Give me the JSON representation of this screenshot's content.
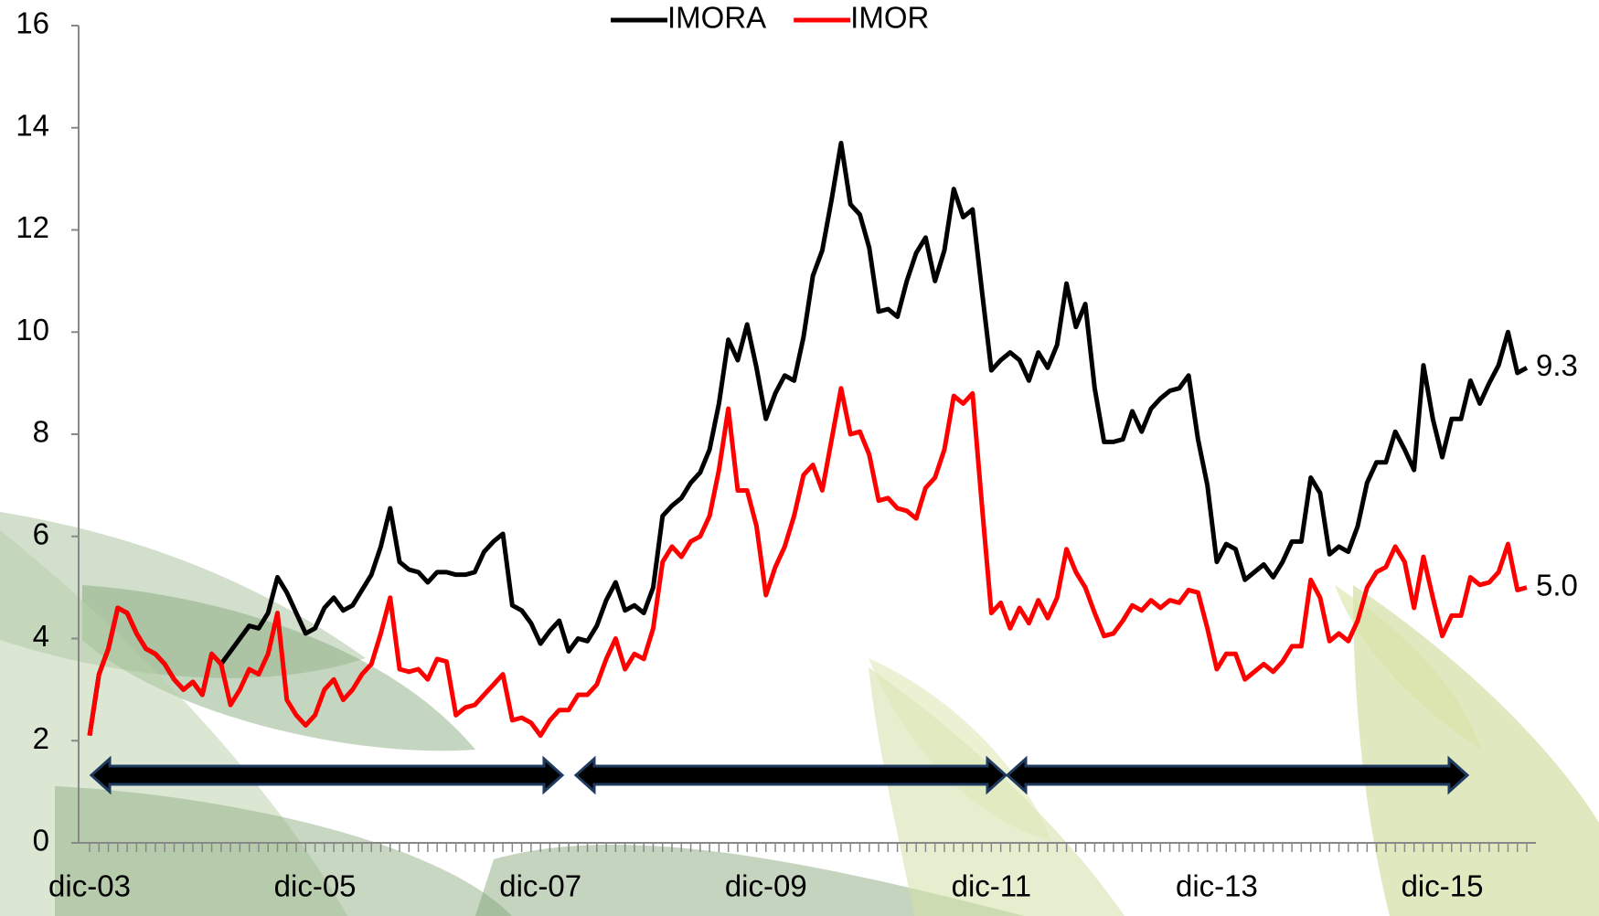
{
  "chart_data": {
    "type": "line",
    "categories": [
      "dic-03",
      null,
      null,
      null,
      null,
      null,
      null,
      null,
      null,
      null,
      null,
      null,
      null,
      null,
      null,
      null,
      null,
      null,
      null,
      null,
      null,
      null,
      null,
      null,
      "dic-05",
      null,
      null,
      null,
      null,
      null,
      null,
      null,
      null,
      null,
      null,
      null,
      null,
      null,
      null,
      null,
      null,
      null,
      null,
      null,
      null,
      null,
      null,
      null,
      "dic-07",
      null,
      null,
      null,
      null,
      null,
      null,
      null,
      null,
      null,
      null,
      null,
      null,
      null,
      null,
      null,
      null,
      null,
      null,
      null,
      null,
      null,
      null,
      null,
      "dic-09",
      null,
      null,
      null,
      null,
      null,
      null,
      null,
      null,
      null,
      null,
      null,
      null,
      null,
      null,
      null,
      null,
      null,
      null,
      null,
      null,
      null,
      null,
      null,
      "dic-11",
      null,
      null,
      null,
      null,
      null,
      null,
      null,
      null,
      null,
      null,
      null,
      null,
      null,
      null,
      null,
      null,
      null,
      null,
      null,
      null,
      null,
      null,
      null,
      "dic-13",
      null,
      null,
      null,
      null,
      null,
      null,
      null,
      null,
      null,
      null,
      null,
      null,
      null,
      null,
      null,
      null,
      null,
      null,
      null,
      null,
      null,
      null,
      null,
      "dic-15",
      null,
      null,
      null,
      null,
      null,
      null,
      null,
      null,
      null
    ],
    "series": [
      {
        "name": "IMORA",
        "color": "#000000",
        "values": [
          2.1,
          3.3,
          3.8,
          4.6,
          4.5,
          4.1,
          3.8,
          3.7,
          3.5,
          3.2,
          3.0,
          3.15,
          2.9,
          3.7,
          3.5,
          3.75,
          4.0,
          4.25,
          4.2,
          4.5,
          5.2,
          4.9,
          4.5,
          4.1,
          4.2,
          4.6,
          4.8,
          4.55,
          4.65,
          4.95,
          5.25,
          5.8,
          6.55,
          5.5,
          5.35,
          5.3,
          5.1,
          5.3,
          5.3,
          5.25,
          5.25,
          5.3,
          5.7,
          5.9,
          6.05,
          4.65,
          4.55,
          4.3,
          3.9,
          4.15,
          4.35,
          3.75,
          4.0,
          3.95,
          4.25,
          4.75,
          5.1,
          4.55,
          4.65,
          4.5,
          5.0,
          6.4,
          6.6,
          6.75,
          7.05,
          7.25,
          7.7,
          8.6,
          9.85,
          9.45,
          10.15,
          9.3,
          8.3,
          8.8,
          9.15,
          9.05,
          9.9,
          11.1,
          11.6,
          12.6,
          13.7,
          12.5,
          12.3,
          11.65,
          10.4,
          10.45,
          10.3,
          11.0,
          11.55,
          11.85,
          11.0,
          11.6,
          12.8,
          12.25,
          12.4,
          10.8,
          9.25,
          9.45,
          9.6,
          9.45,
          9.05,
          9.6,
          9.3,
          9.75,
          10.95,
          10.1,
          10.55,
          8.9,
          7.85,
          7.85,
          7.9,
          8.45,
          8.05,
          8.5,
          8.7,
          8.85,
          8.9,
          9.15,
          7.9,
          7.0,
          5.5,
          5.85,
          5.75,
          5.15,
          5.3,
          5.45,
          5.2,
          5.5,
          5.9,
          5.9,
          7.15,
          6.85,
          5.65,
          5.8,
          5.7,
          6.2,
          7.05,
          7.45,
          7.45,
          8.05,
          7.7,
          7.3,
          9.35,
          8.3,
          7.55,
          8.3,
          8.3,
          9.05,
          8.6,
          9.0,
          9.35,
          10.0,
          9.2,
          9.3
        ],
        "value_labels": [
          null,
          null,
          null,
          null,
          null,
          null,
          null,
          null,
          null,
          null,
          null,
          null,
          null,
          null,
          null,
          null,
          null,
          null,
          null,
          null,
          null,
          null,
          null,
          null,
          null,
          null,
          null,
          null,
          null,
          null,
          null,
          null,
          null,
          null,
          null,
          null,
          null,
          null,
          null,
          null,
          null,
          null,
          null,
          null,
          null,
          null,
          null,
          null,
          null,
          null,
          null,
          null,
          null,
          null,
          null,
          null,
          null,
          null,
          null,
          null,
          null,
          null,
          null,
          null,
          null,
          null,
          null,
          null,
          null,
          null,
          null,
          null,
          null,
          null,
          null,
          null,
          null,
          null,
          null,
          null,
          null,
          null,
          null,
          null,
          null,
          null,
          null,
          null,
          null,
          null,
          null,
          null,
          null,
          null,
          null,
          null,
          null,
          null,
          null,
          null,
          null,
          null,
          null,
          null,
          null,
          null,
          null,
          null,
          null,
          null,
          null,
          null,
          null,
          null,
          null,
          null,
          null,
          null,
          null,
          null,
          null,
          null,
          null,
          null,
          null,
          null,
          null,
          null,
          null,
          null,
          null,
          null,
          null,
          null,
          null,
          null,
          null,
          null,
          null,
          null,
          null,
          null,
          null,
          null,
          null,
          null,
          null,
          null,
          null,
          null,
          null,
          null,
          null,
          "9.3"
        ]
      },
      {
        "name": "IMOR",
        "color": "#ff0000",
        "values": [
          2.1,
          3.3,
          3.8,
          4.6,
          4.5,
          4.1,
          3.8,
          3.7,
          3.5,
          3.2,
          3.0,
          3.15,
          2.9,
          3.7,
          3.5,
          2.7,
          3.0,
          3.4,
          3.3,
          3.7,
          4.5,
          2.8,
          2.5,
          2.3,
          2.5,
          3.0,
          3.2,
          2.8,
          3.0,
          3.3,
          3.5,
          4.1,
          4.8,
          3.4,
          3.35,
          3.4,
          3.2,
          3.6,
          3.55,
          2.5,
          2.65,
          2.7,
          2.9,
          3.1,
          3.3,
          2.4,
          2.45,
          2.35,
          2.1,
          2.4,
          2.6,
          2.6,
          2.9,
          2.9,
          3.1,
          3.6,
          4.0,
          3.4,
          3.7,
          3.6,
          4.2,
          5.5,
          5.8,
          5.6,
          5.9,
          6.0,
          6.4,
          7.3,
          8.5,
          6.9,
          6.9,
          6.2,
          4.85,
          5.4,
          5.8,
          6.4,
          7.2,
          7.4,
          6.9,
          7.9,
          8.9,
          8.0,
          8.05,
          7.6,
          6.7,
          6.75,
          6.55,
          6.5,
          6.35,
          6.95,
          7.15,
          7.7,
          8.75,
          8.6,
          8.8,
          6.6,
          4.5,
          4.7,
          4.2,
          4.6,
          4.3,
          4.75,
          4.4,
          4.8,
          5.75,
          5.3,
          5.0,
          4.5,
          4.05,
          4.1,
          4.35,
          4.65,
          4.55,
          4.75,
          4.6,
          4.75,
          4.7,
          4.95,
          4.9,
          4.2,
          3.4,
          3.7,
          3.7,
          3.2,
          3.35,
          3.5,
          3.35,
          3.55,
          3.85,
          3.85,
          5.15,
          4.8,
          3.95,
          4.1,
          3.95,
          4.35,
          5.0,
          5.3,
          5.4,
          5.8,
          5.5,
          4.6,
          5.6,
          4.8,
          4.05,
          4.45,
          4.45,
          5.2,
          5.05,
          5.1,
          5.3,
          5.85,
          4.95,
          5.0
        ],
        "value_labels": [
          null,
          null,
          null,
          null,
          null,
          null,
          null,
          null,
          null,
          null,
          null,
          null,
          null,
          null,
          null,
          null,
          null,
          null,
          null,
          null,
          null,
          null,
          null,
          null,
          null,
          null,
          null,
          null,
          null,
          null,
          null,
          null,
          null,
          null,
          null,
          null,
          null,
          null,
          null,
          null,
          null,
          null,
          null,
          null,
          null,
          null,
          null,
          null,
          null,
          null,
          null,
          null,
          null,
          null,
          null,
          null,
          null,
          null,
          null,
          null,
          null,
          null,
          null,
          null,
          null,
          null,
          null,
          null,
          null,
          null,
          null,
          null,
          null,
          null,
          null,
          null,
          null,
          null,
          null,
          null,
          null,
          null,
          null,
          null,
          null,
          null,
          null,
          null,
          null,
          null,
          null,
          null,
          null,
          null,
          null,
          null,
          null,
          null,
          null,
          null,
          null,
          null,
          null,
          null,
          null,
          null,
          null,
          null,
          null,
          null,
          null,
          null,
          null,
          null,
          null,
          null,
          null,
          null,
          null,
          null,
          null,
          null,
          null,
          null,
          null,
          null,
          null,
          null,
          null,
          null,
          null,
          null,
          null,
          null,
          null,
          null,
          null,
          null,
          null,
          null,
          null,
          null,
          null,
          null,
          null,
          null,
          null,
          null,
          null,
          null,
          null,
          null,
          null,
          "5.0"
        ]
      }
    ],
    "ylim": [
      0,
      16
    ],
    "yticks": [
      0,
      2,
      4,
      6,
      8,
      10,
      12,
      14,
      16
    ],
    "legend": "top"
  }
}
